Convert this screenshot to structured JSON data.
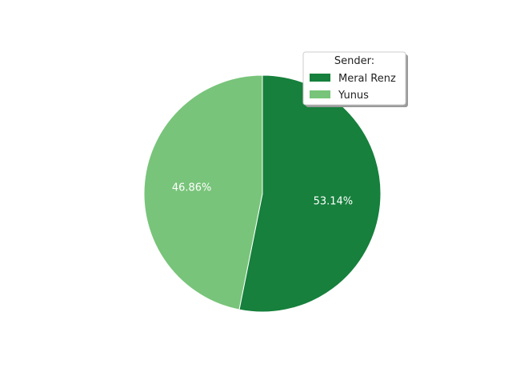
{
  "chart_data": {
    "type": "pie",
    "legend": {
      "title": "Sender:",
      "placement": "top-right"
    },
    "series": [
      {
        "name": "Meral Renz",
        "value": 53.14,
        "label": "53.14%",
        "color": "#16803c"
      },
      {
        "name": "Yunus",
        "value": 46.86,
        "label": "46.86%",
        "color": "#78c47a"
      }
    ],
    "start": "top",
    "direction": "clockwise"
  }
}
